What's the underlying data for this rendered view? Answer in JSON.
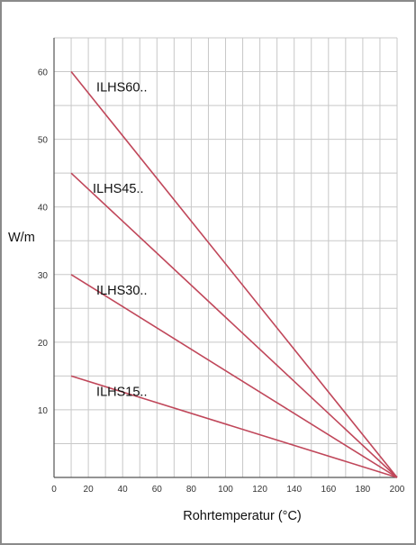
{
  "chart_data": {
    "type": "line",
    "xlabel": "Rohrtemperatur (°C)",
    "ylabel": "W/m",
    "xlim": [
      0,
      200
    ],
    "ylim": [
      0,
      65
    ],
    "x_ticks": [
      0,
      20,
      40,
      60,
      80,
      100,
      120,
      140,
      160,
      180,
      200
    ],
    "y_ticks": [
      10,
      20,
      30,
      40,
      50,
      60
    ],
    "grid": true,
    "series": [
      {
        "name": "ILHS60..",
        "x": [
          10,
          200
        ],
        "y": [
          60,
          0
        ]
      },
      {
        "name": "ILHS45..",
        "x": [
          10,
          200
        ],
        "y": [
          45,
          0
        ]
      },
      {
        "name": "ILHS30..",
        "x": [
          10,
          200
        ],
        "y": [
          30,
          0
        ]
      },
      {
        "name": "ILHS15..",
        "x": [
          10,
          200
        ],
        "y": [
          15,
          0
        ]
      }
    ],
    "colors": {
      "line": "#c0475a",
      "grid": "#c8c8c8",
      "axis": "#555555"
    }
  }
}
